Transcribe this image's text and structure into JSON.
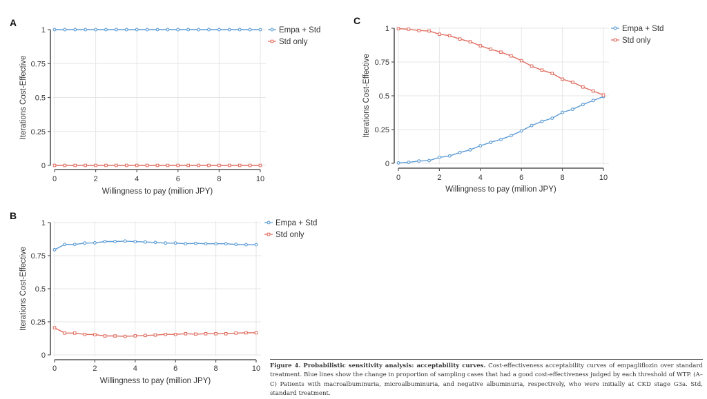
{
  "figure": {
    "caption_title": "Figure 4. Probabilistic sensitivity analysis: acceptability curves.",
    "caption_body": "Cost-effectiveness acceptability curves of empagliflozin over standard treatment. Blue lines show the change in proportion of sampling cases that had a good cost-effectiveness judged by each threshold of WTP. (A–C) Patients with macroalbuminuria, microalbuminuria, and negative albuminuria, respectively, who were initially at CKD stage G3a. Std, standard treatment."
  },
  "colors": {
    "empa": "#5b9bd5",
    "std": "#e06c5f",
    "grid": "#e6e6e6",
    "axis": "#555555"
  },
  "chart_data": [
    {
      "panel": "A",
      "type": "line",
      "xlabel": "Willingness to pay (million JPY)",
      "ylabel": "Iterations Cost-Effective",
      "xlim": [
        0,
        10
      ],
      "ylim": [
        0,
        1
      ],
      "xticks": [
        "0",
        "2",
        "4",
        "6",
        "8",
        "10"
      ],
      "yticks": [
        "0",
        "0.25",
        "0.5",
        "0.75",
        "1"
      ],
      "grid": true,
      "legend": "top-right",
      "x": [
        0,
        0.5,
        1,
        1.5,
        2,
        2.5,
        3,
        3.5,
        4,
        4.5,
        5,
        5.5,
        6,
        6.5,
        7,
        7.5,
        8,
        8.5,
        9,
        9.5,
        10
      ],
      "series": [
        {
          "name": "Empa + Std",
          "marker": "circle",
          "values": [
            1,
            1,
            1,
            1,
            1,
            1,
            1,
            1,
            1,
            1,
            1,
            1,
            1,
            1,
            1,
            1,
            1,
            1,
            1,
            1,
            1
          ]
        },
        {
          "name": "Std only",
          "marker": "square",
          "values": [
            0,
            0,
            0,
            0,
            0,
            0,
            0,
            0,
            0,
            0,
            0,
            0,
            0,
            0,
            0,
            0,
            0,
            0,
            0,
            0,
            0
          ]
        }
      ]
    },
    {
      "panel": "B",
      "type": "line",
      "xlabel": "Willingness to pay (million JPY)",
      "ylabel": "Iterations Cost-Effective",
      "xlim": [
        0,
        10
      ],
      "ylim": [
        0,
        1
      ],
      "xticks": [
        "0",
        "2",
        "4",
        "6",
        "8",
        "10"
      ],
      "yticks": [
        "0",
        "0.25",
        "0.5",
        "0.75",
        "1"
      ],
      "grid": true,
      "legend": "top-right",
      "x": [
        0,
        0.5,
        1,
        1.5,
        2,
        2.5,
        3,
        3.5,
        4,
        4.5,
        5,
        5.5,
        6,
        6.5,
        7,
        7.5,
        8,
        8.5,
        9,
        9.5,
        10
      ],
      "series": [
        {
          "name": "Empa + Std",
          "marker": "circle",
          "values": [
            0.795,
            0.835,
            0.835,
            0.845,
            0.847,
            0.857,
            0.857,
            0.86,
            0.856,
            0.853,
            0.85,
            0.845,
            0.845,
            0.84,
            0.843,
            0.84,
            0.84,
            0.84,
            0.835,
            0.833,
            0.833
          ]
        },
        {
          "name": "Std only",
          "marker": "square",
          "values": [
            0.205,
            0.165,
            0.165,
            0.155,
            0.153,
            0.143,
            0.143,
            0.14,
            0.144,
            0.147,
            0.15,
            0.155,
            0.155,
            0.16,
            0.157,
            0.16,
            0.16,
            0.16,
            0.165,
            0.167,
            0.167
          ]
        }
      ]
    },
    {
      "panel": "C",
      "type": "line",
      "xlabel": "Willingness to pay (million JPY)",
      "ylabel": "Iterations Cost-Effective",
      "xlim": [
        0,
        10
      ],
      "ylim": [
        0,
        1
      ],
      "xticks": [
        "0",
        "2",
        "4",
        "6",
        "8",
        "10"
      ],
      "yticks": [
        "0",
        "0.25",
        "0.5",
        "0.75",
        "1"
      ],
      "grid": true,
      "legend": "top-right",
      "x": [
        0,
        0.5,
        1,
        1.5,
        2,
        2.5,
        3,
        3.5,
        4,
        4.5,
        5,
        5.5,
        6,
        6.5,
        7,
        7.5,
        8,
        8.5,
        9,
        9.5,
        10
      ],
      "series": [
        {
          "name": "Empa + Std",
          "marker": "circle",
          "values": [
            0.003,
            0.007,
            0.017,
            0.02,
            0.044,
            0.055,
            0.08,
            0.1,
            0.13,
            0.155,
            0.177,
            0.205,
            0.24,
            0.28,
            0.31,
            0.334,
            0.377,
            0.4,
            0.435,
            0.465,
            0.494
          ]
        },
        {
          "name": "Std only",
          "marker": "square",
          "values": [
            0.997,
            0.993,
            0.983,
            0.98,
            0.956,
            0.945,
            0.92,
            0.9,
            0.87,
            0.845,
            0.823,
            0.795,
            0.76,
            0.72,
            0.69,
            0.666,
            0.623,
            0.6,
            0.565,
            0.535,
            0.506
          ]
        }
      ]
    }
  ]
}
